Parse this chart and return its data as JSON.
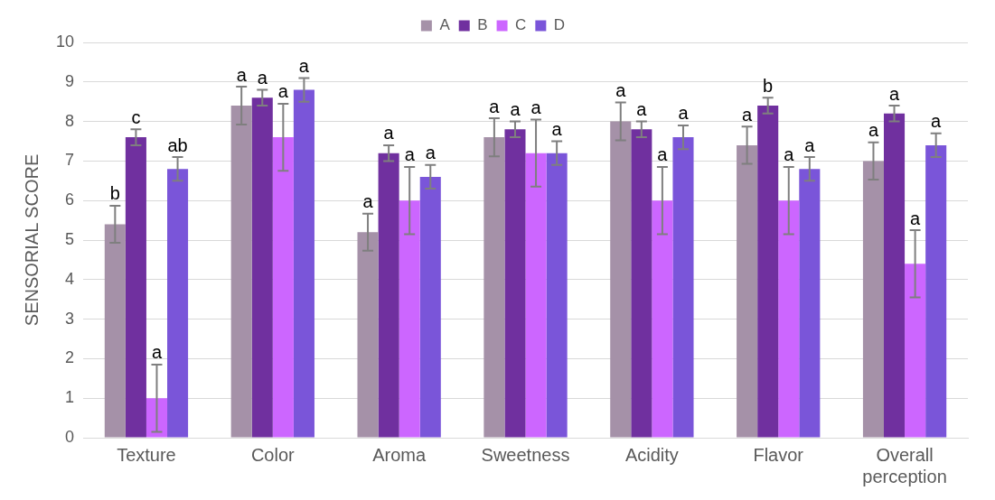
{
  "chart_data": {
    "type": "bar",
    "ylabel": "SENSORIAL SCORE",
    "categories": [
      "Texture",
      "Color",
      "Aroma",
      "Sweetness",
      "Acidity",
      "Flavor",
      "Overall perception"
    ],
    "series": [
      {
        "name": "A",
        "color": "#a591a8",
        "values": [
          5.4,
          8.4,
          5.2,
          7.6,
          8.0,
          7.4,
          7.0
        ],
        "errors": [
          0.47,
          0.48,
          0.47,
          0.48,
          0.48,
          0.47,
          0.47
        ],
        "value_labels": [
          "b",
          "a",
          "a",
          "a",
          "a",
          "a",
          "a"
        ]
      },
      {
        "name": "B",
        "color": "#70309f",
        "values": [
          7.6,
          8.6,
          7.2,
          7.8,
          7.8,
          8.4,
          8.2
        ],
        "errors": [
          0.2,
          0.2,
          0.2,
          0.2,
          0.2,
          0.2,
          0.2
        ],
        "value_labels": [
          "c",
          "a",
          "a",
          "a",
          "a",
          "b",
          "a"
        ]
      },
      {
        "name": "C",
        "color": "#cc66ff",
        "values": [
          1.0,
          7.6,
          6.0,
          7.2,
          6.0,
          6.0,
          4.4
        ],
        "errors": [
          0.85,
          0.85,
          0.85,
          0.85,
          0.85,
          0.85,
          0.85
        ],
        "value_labels": [
          "a",
          "a",
          "a",
          "a",
          "a",
          "a",
          "a"
        ]
      },
      {
        "name": "D",
        "color": "#7a55d9",
        "values": [
          6.8,
          8.8,
          6.6,
          7.2,
          7.6,
          6.8,
          7.4
        ],
        "errors": [
          0.3,
          0.3,
          0.3,
          0.3,
          0.3,
          0.3,
          0.3
        ],
        "value_labels": [
          "ab",
          "a",
          "a",
          "a",
          "a",
          "a",
          "a"
        ]
      }
    ],
    "ylim": [
      0,
      10
    ],
    "yticks": [
      0,
      1,
      2,
      3,
      4,
      5,
      6,
      7,
      8,
      9,
      10
    ],
    "grid": "y",
    "legend": "top"
  }
}
